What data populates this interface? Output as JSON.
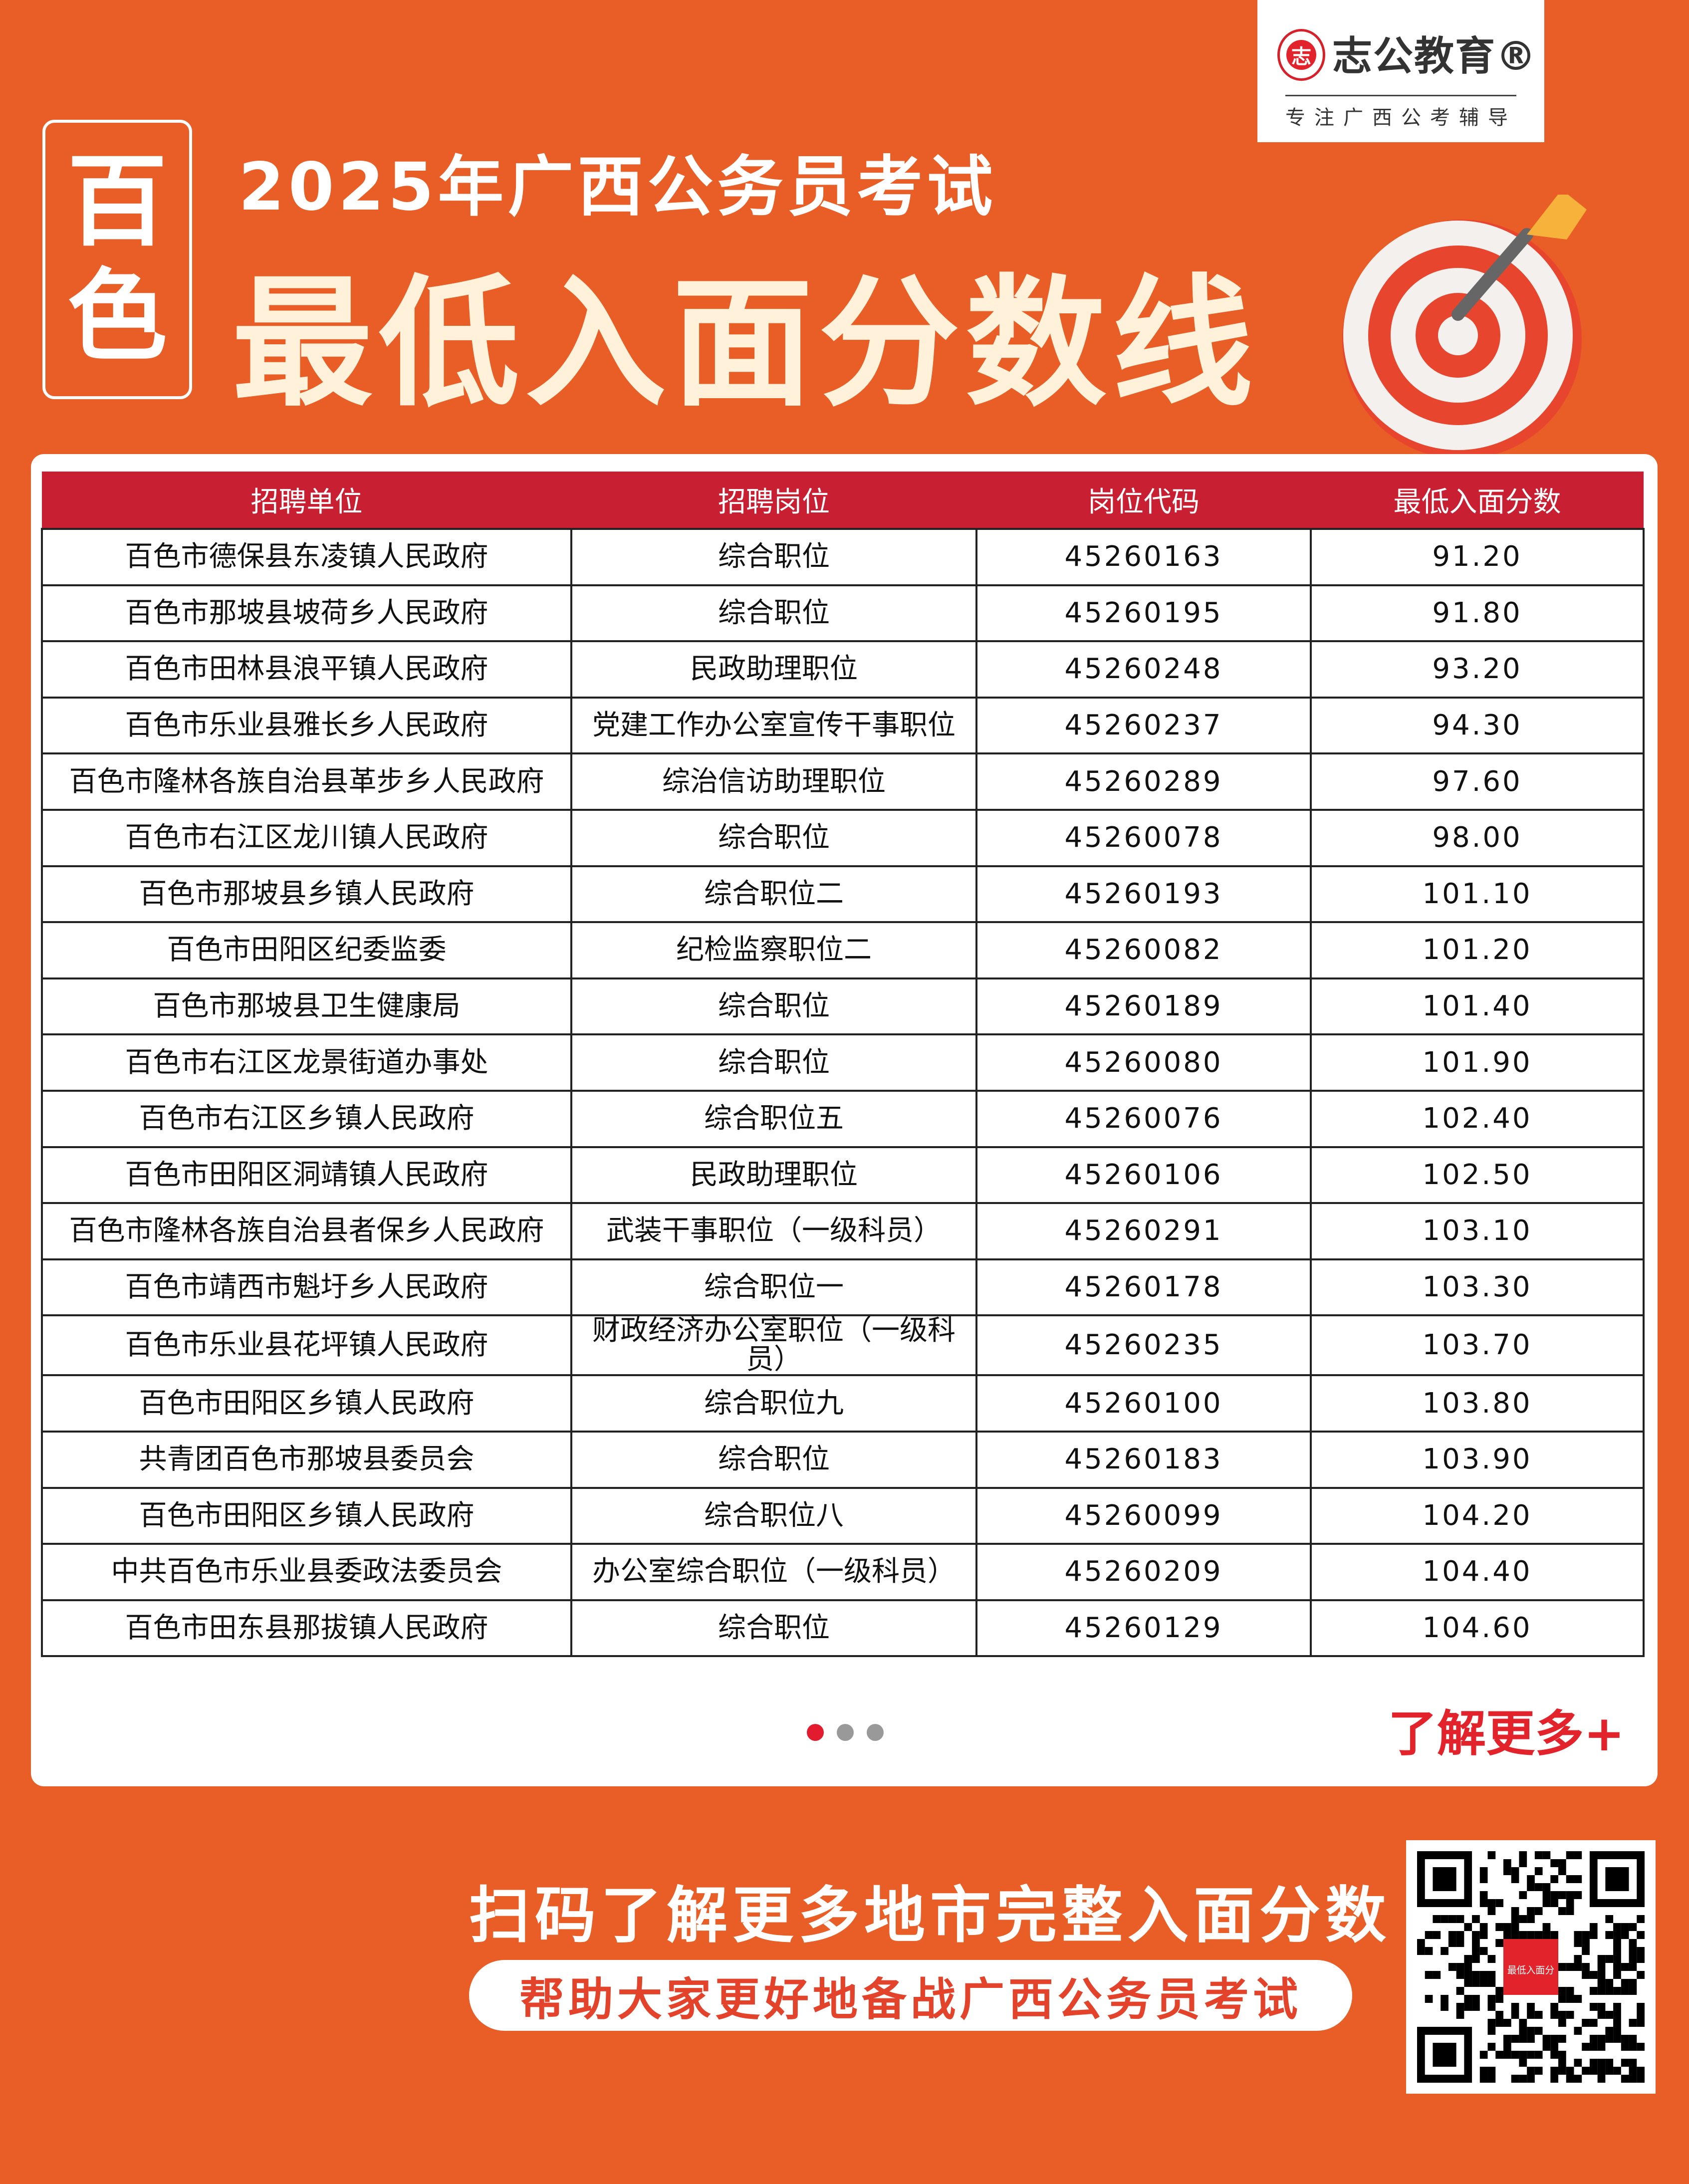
{
  "logo": {
    "seal_char": "志",
    "brand": "志公教育®",
    "slogan": "专注广西公考辅导"
  },
  "city": [
    "百",
    "色"
  ],
  "title": {
    "line1": "2025年广西公务员考试",
    "line2": "最低入面分数线"
  },
  "table": {
    "headers": [
      "招聘单位",
      "招聘岗位",
      "岗位代码",
      "最低入面分数"
    ],
    "rows": [
      [
        "百色市德保县东凌镇人民政府",
        "综合职位",
        "45260163",
        "91.20"
      ],
      [
        "百色市那坡县坡荷乡人民政府",
        "综合职位",
        "45260195",
        "91.80"
      ],
      [
        "百色市田林县浪平镇人民政府",
        "民政助理职位",
        "45260248",
        "93.20"
      ],
      [
        "百色市乐业县雅长乡人民政府",
        "党建工作办公室宣传干事职位",
        "45260237",
        "94.30"
      ],
      [
        "百色市隆林各族自治县革步乡人民政府",
        "综治信访助理职位",
        "45260289",
        "97.60"
      ],
      [
        "百色市右江区龙川镇人民政府",
        "综合职位",
        "45260078",
        "98.00"
      ],
      [
        "百色市那坡县乡镇人民政府",
        "综合职位二",
        "45260193",
        "101.10"
      ],
      [
        "百色市田阳区纪委监委",
        "纪检监察职位二",
        "45260082",
        "101.20"
      ],
      [
        "百色市那坡县卫生健康局",
        "综合职位",
        "45260189",
        "101.40"
      ],
      [
        "百色市右江区龙景街道办事处",
        "综合职位",
        "45260080",
        "101.90"
      ],
      [
        "百色市右江区乡镇人民政府",
        "综合职位五",
        "45260076",
        "102.40"
      ],
      [
        "百色市田阳区洞靖镇人民政府",
        "民政助理职位",
        "45260106",
        "102.50"
      ],
      [
        "百色市隆林各族自治县者保乡人民政府",
        "武装干事职位（一级科员）",
        "45260291",
        "103.10"
      ],
      [
        "百色市靖西市魁圩乡人民政府",
        "综合职位一",
        "45260178",
        "103.30"
      ],
      [
        "百色市乐业县花坪镇人民政府",
        "财政经济办公室职位（一级科员）",
        "45260235",
        "103.70"
      ],
      [
        "百色市田阳区乡镇人民政府",
        "综合职位九",
        "45260100",
        "103.80"
      ],
      [
        "共青团百色市那坡县委员会",
        "综合职位",
        "45260183",
        "103.90"
      ],
      [
        "百色市田阳区乡镇人民政府",
        "综合职位八",
        "45260099",
        "104.20"
      ],
      [
        "中共百色市乐业县委政法委员会",
        "办公室综合职位（一级科员）",
        "45260209",
        "104.40"
      ],
      [
        "百色市田东县那拔镇人民政府",
        "综合职位",
        "45260129",
        "104.60"
      ]
    ]
  },
  "pagination": {
    "pages": 3,
    "current": 1
  },
  "more_label": "了解更多+",
  "bottom": {
    "headline": "扫码了解更多地市完整入面分数",
    "subline": "帮助大家更好地备战广西公务员考试",
    "qr_label": "最低入面分"
  },
  "colors": {
    "background": "#E85E26",
    "header_red": "#C91F32",
    "accent_red": "#E3232B"
  }
}
